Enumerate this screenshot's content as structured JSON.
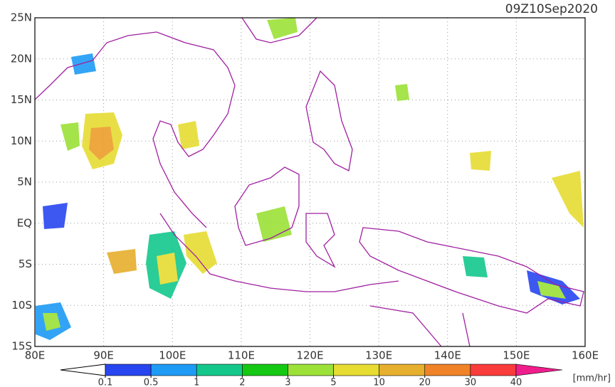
{
  "title": "09Z10Sep2020",
  "lat_labels": [
    "25N",
    "20N",
    "15N",
    "10N",
    "5N",
    "EQ",
    "5S",
    "10S",
    "15S"
  ],
  "lon_labels": [
    "80E",
    "90E",
    "100E",
    "110E",
    "120E",
    "130E",
    "140E",
    "150E",
    "160E"
  ],
  "colorbar": {
    "ticks": [
      0.1,
      0.5,
      1,
      2,
      3,
      5,
      10,
      20,
      30,
      40
    ],
    "colors": [
      "#2846f0",
      "#1e9bf5",
      "#14c88c",
      "#14c814",
      "#9be137",
      "#e6dc32",
      "#e6af2d",
      "#f08228",
      "#fa3c3c",
      "#f01e8c"
    ],
    "unit": "[mm/hr]"
  }
}
